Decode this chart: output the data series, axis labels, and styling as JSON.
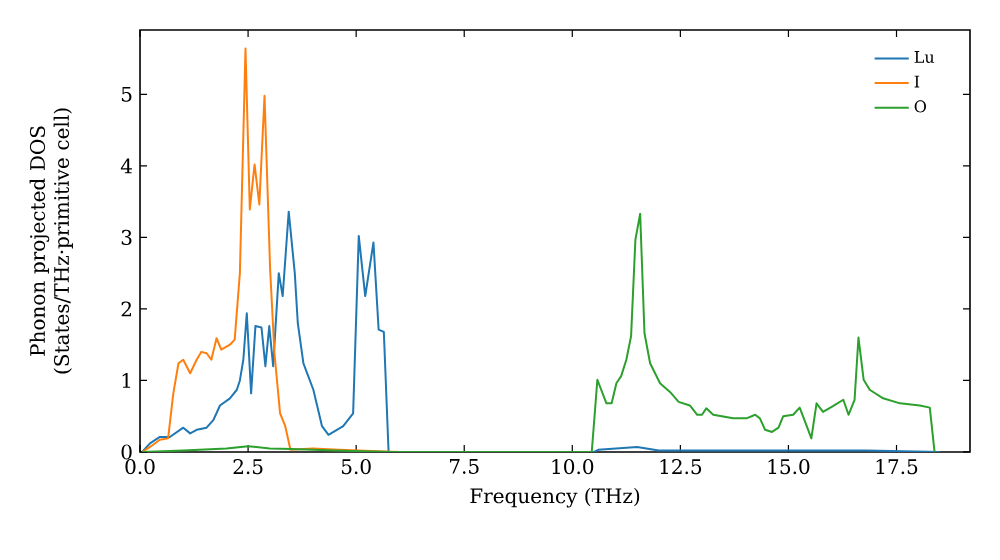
{
  "chart_data": {
    "type": "line",
    "xlabel": "Frequency (THz)",
    "ylabel": "Phonon projected DOS (States/THz·primitive cell)",
    "xlim": [
      0,
      19.2
    ],
    "ylim": [
      0,
      5.9
    ],
    "xticks": [
      {
        "value": 0,
        "label": "0.0"
      },
      {
        "value": 2.5,
        "label": "2.5"
      },
      {
        "value": 5,
        "label": "5.0"
      },
      {
        "value": 7.5,
        "label": "7.5"
      },
      {
        "value": 10,
        "label": "10.0"
      },
      {
        "value": 12.5,
        "label": "12.5"
      },
      {
        "value": 15,
        "label": "15.0"
      },
      {
        "value": 17.5,
        "label": "17.5"
      }
    ],
    "yticks": [
      0,
      1,
      2,
      3,
      4,
      5
    ],
    "legend": "top right",
    "grid": false,
    "marker": "none",
    "line_style": "solid",
    "series": [
      {
        "name": "Lu",
        "color": "#1f77b4",
        "x": [
          0.05,
          0.23,
          0.46,
          0.69,
          1.0,
          1.16,
          1.31,
          1.54,
          1.7,
          1.85,
          2.08,
          2.24,
          2.31,
          2.39,
          2.47,
          2.57,
          2.67,
          2.81,
          2.9,
          2.99,
          3.08,
          3.21,
          3.3,
          3.44,
          3.58,
          3.65,
          3.78,
          4.01,
          4.21,
          4.36,
          4.7,
          4.93,
          5.06,
          5.21,
          5.4,
          5.52,
          5.64,
          5.75,
          6.0,
          10.5,
          10.6,
          11.5,
          12.0,
          16.8,
          18.5
        ],
        "values": [
          0,
          0.12,
          0.21,
          0.21,
          0.34,
          0.26,
          0.31,
          0.34,
          0.45,
          0.65,
          0.75,
          0.87,
          1.0,
          1.29,
          1.94,
          0.82,
          1.76,
          1.74,
          1.2,
          1.76,
          1.2,
          2.5,
          2.18,
          3.36,
          2.5,
          1.8,
          1.24,
          0.87,
          0.36,
          0.24,
          0.36,
          0.54,
          3.02,
          2.18,
          2.93,
          1.71,
          1.68,
          0,
          0,
          0,
          0.03,
          0.07,
          0.02,
          0.02,
          0
        ]
      },
      {
        "name": "I",
        "color": "#ff7f0e",
        "x": [
          0.05,
          0.23,
          0.46,
          0.65,
          0.77,
          0.89,
          1.0,
          1.16,
          1.31,
          1.42,
          1.54,
          1.65,
          1.77,
          1.88,
          2.08,
          2.19,
          2.31,
          2.44,
          2.54,
          2.65,
          2.76,
          2.88,
          3.01,
          3.11,
          3.24,
          3.36,
          3.48,
          4.0,
          4.6,
          5.5,
          6.0
        ],
        "values": [
          0,
          0.07,
          0.17,
          0.19,
          0.82,
          1.24,
          1.29,
          1.1,
          1.29,
          1.4,
          1.38,
          1.29,
          1.59,
          1.43,
          1.5,
          1.57,
          2.5,
          5.64,
          3.39,
          4.02,
          3.46,
          4.98,
          2.55,
          1.38,
          0.54,
          0.36,
          0.03,
          0.05,
          0.03,
          0.01,
          0
        ]
      },
      {
        "name": "O",
        "color": "#2ca02c",
        "x": [
          0.05,
          1.0,
          2.0,
          2.5,
          3.0,
          3.5,
          4.5,
          5.8,
          10.45,
          10.58,
          10.79,
          10.91,
          11.02,
          11.13,
          11.25,
          11.36,
          11.46,
          11.57,
          11.67,
          11.8,
          12.03,
          12.26,
          12.46,
          12.72,
          12.89,
          13.0,
          13.1,
          13.26,
          13.72,
          14.03,
          14.23,
          14.34,
          14.46,
          14.62,
          14.77,
          14.88,
          15.11,
          15.26,
          15.38,
          15.53,
          15.65,
          15.8,
          16.03,
          16.27,
          16.39,
          16.53,
          16.62,
          16.74,
          16.88,
          17.19,
          17.58,
          18.04,
          18.27,
          18.38
        ],
        "values": [
          0,
          0.02,
          0.05,
          0.08,
          0.05,
          0.04,
          0.02,
          0,
          0,
          1.01,
          0.68,
          0.68,
          0.96,
          1.06,
          1.29,
          1.62,
          2.97,
          3.33,
          1.66,
          1.24,
          0.96,
          0.84,
          0.7,
          0.65,
          0.52,
          0.52,
          0.61,
          0.52,
          0.47,
          0.47,
          0.52,
          0.47,
          0.31,
          0.28,
          0.34,
          0.5,
          0.52,
          0.62,
          0.43,
          0.19,
          0.68,
          0.56,
          0.64,
          0.73,
          0.52,
          0.73,
          1.6,
          1.01,
          0.87,
          0.75,
          0.68,
          0.65,
          0.62,
          0
        ]
      }
    ]
  }
}
